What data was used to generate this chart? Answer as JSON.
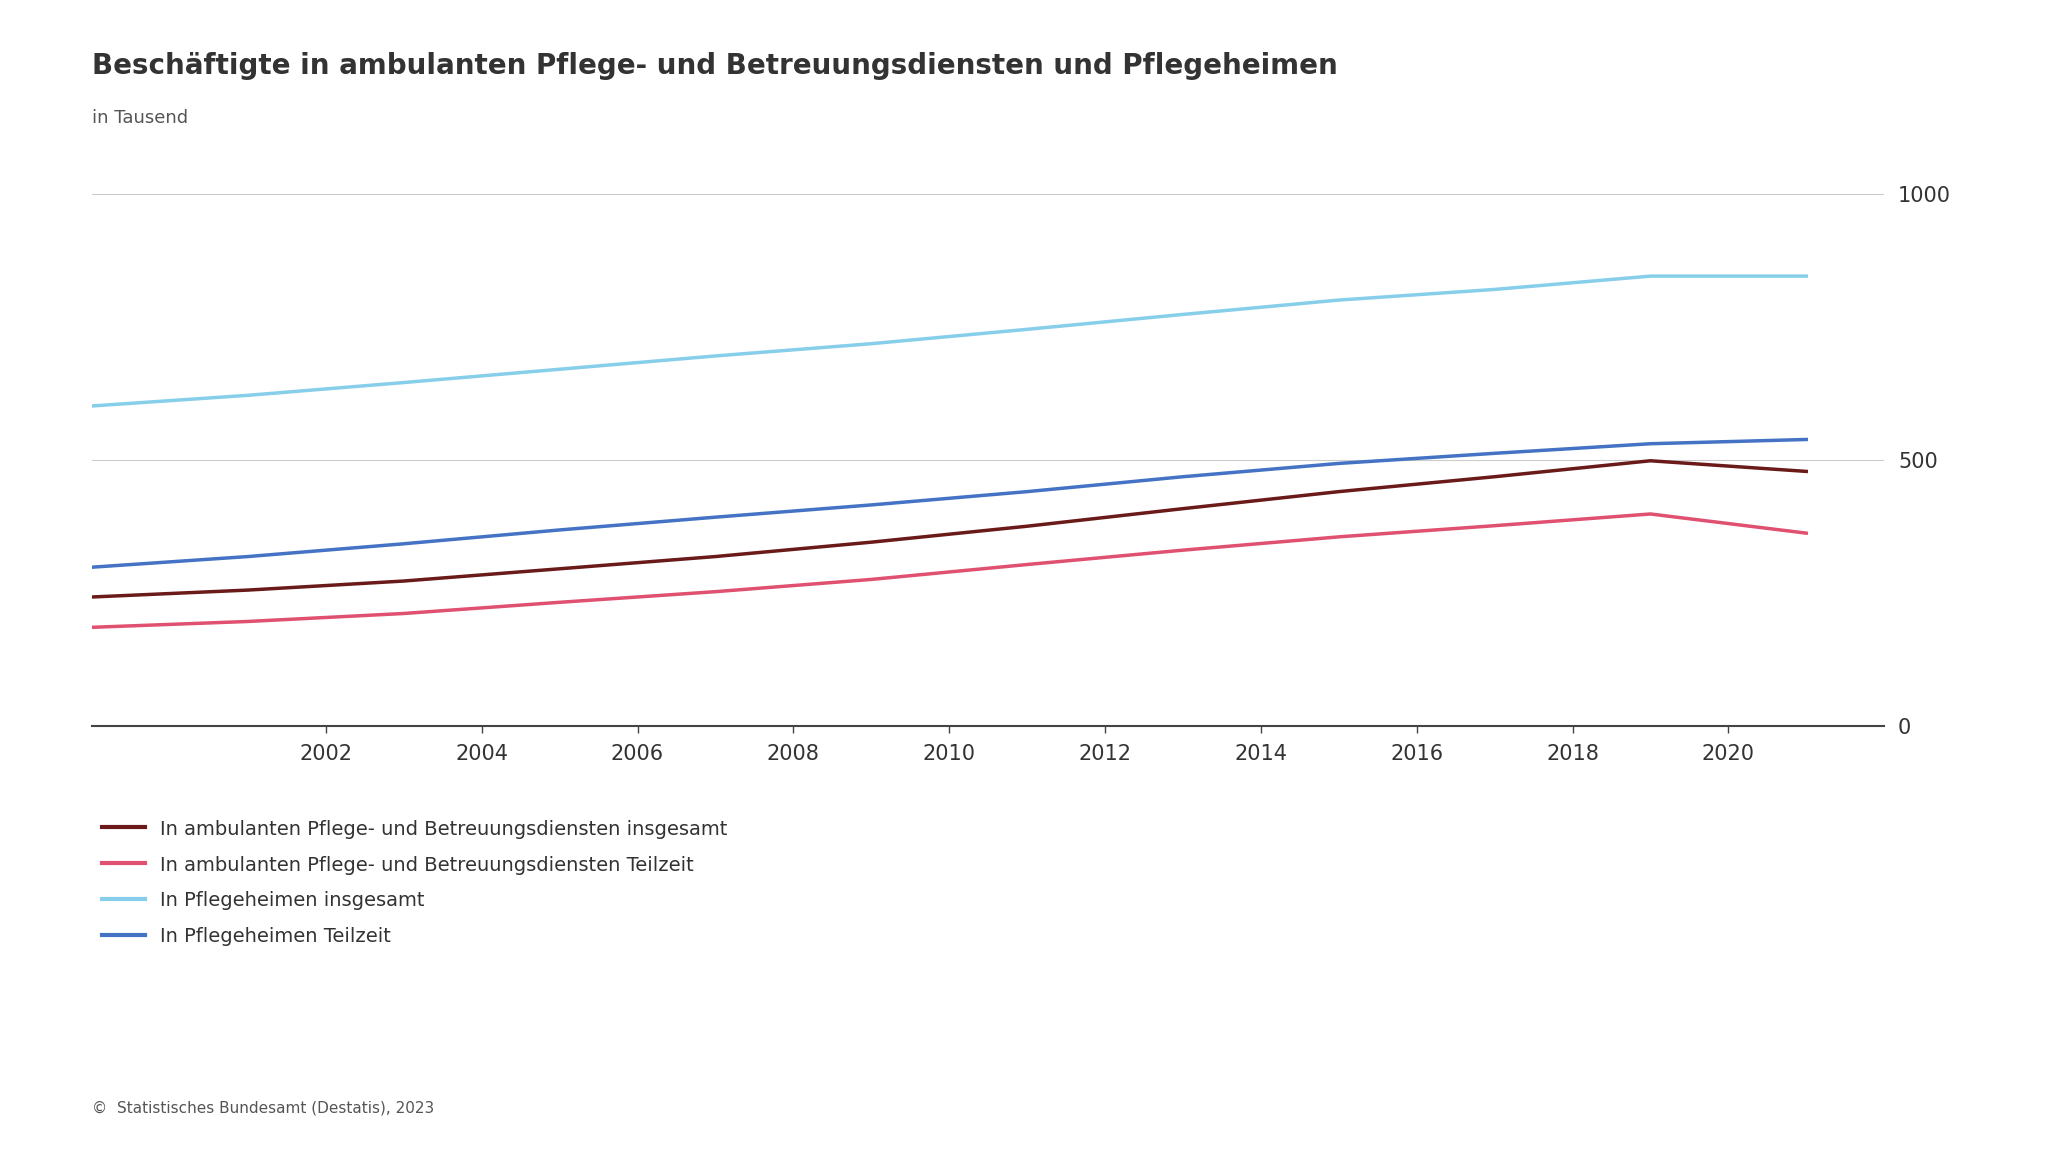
{
  "title": "Beschäftigte in ambulanten Pflege- und Betreuungsdiensten und Pflegeheimen",
  "subtitle": "in Tausend",
  "footer": "© 📊 Statistisches Bundesamt (Destatis), 2023",
  "years": [
    1999,
    2001,
    2003,
    2005,
    2007,
    2009,
    2011,
    2013,
    2015,
    2017,
    2019,
    2021
  ],
  "ambulant_insgesamt": [
    242,
    255,
    272,
    295,
    318,
    345,
    375,
    408,
    440,
    468,
    498,
    478
  ],
  "ambulant_teilzeit": [
    185,
    196,
    211,
    232,
    252,
    275,
    303,
    330,
    355,
    376,
    398,
    362
  ],
  "heim_insgesamt": [
    601,
    621,
    645,
    670,
    695,
    718,
    745,
    773,
    800,
    820,
    845,
    845
  ],
  "heim_teilzeit": [
    298,
    318,
    342,
    368,
    392,
    415,
    440,
    468,
    493,
    512,
    530,
    538
  ],
  "colors": {
    "ambulant_insgesamt": "#6b1a1a",
    "ambulant_teilzeit": "#e05070",
    "heim_insgesamt": "#87ceeb",
    "heim_teilzeit": "#4472c4"
  },
  "legend_labels": [
    "In ambulanten Pflege- und Betreuungsdiensten insgesamt",
    "In ambulanten Pflege- und Betreuungsdiensten Teilzeit",
    "In Pflegeheimen insgesamt",
    "In Pflegeheimen Teilzeit"
  ],
  "background_color": "#ffffff",
  "ylim": [
    0,
    1050
  ],
  "yticks": [
    0,
    500,
    1000
  ],
  "xlim": [
    1999,
    2022
  ],
  "xticks": [
    2002,
    2004,
    2006,
    2008,
    2010,
    2012,
    2014,
    2016,
    2018,
    2020
  ],
  "title_fontsize": 20,
  "subtitle_fontsize": 13,
  "tick_fontsize": 15,
  "legend_fontsize": 14,
  "linewidth": 2.5,
  "grid_color": "#cccccc",
  "spine_color": "#444444",
  "text_color": "#333333"
}
